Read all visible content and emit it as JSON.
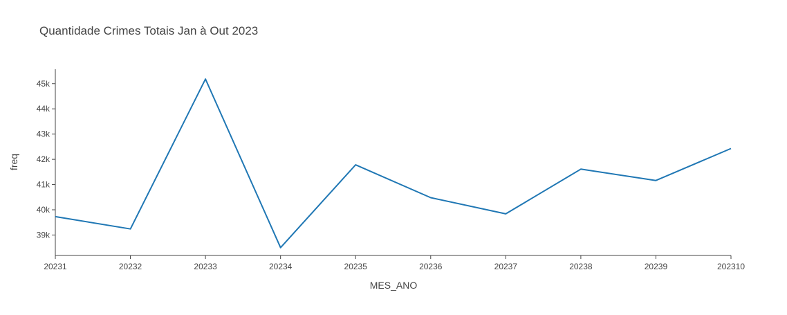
{
  "chart_data": {
    "type": "line",
    "title": "Quantidade Crimes Totais Jan à Out 2023",
    "xlabel": "MES_ANO",
    "ylabel": "freq",
    "x": [
      "20231",
      "20232",
      "20233",
      "20234",
      "20235",
      "20236",
      "20237",
      "20238",
      "20239",
      "202310"
    ],
    "series": [
      {
        "values": [
          39730,
          39240,
          45180,
          38500,
          41780,
          40480,
          39840,
          41610,
          41160,
          42430
        ]
      }
    ],
    "y_ticks": [
      39000,
      40000,
      41000,
      42000,
      43000,
      44000,
      45000
    ],
    "y_tick_labels": [
      "39k",
      "40k",
      "41k",
      "42k",
      "43k",
      "44k",
      "45k"
    ],
    "ylim": [
      38190,
      45570
    ],
    "grid": false,
    "line_color": "#1f77b4",
    "axis_color": "#444444"
  }
}
